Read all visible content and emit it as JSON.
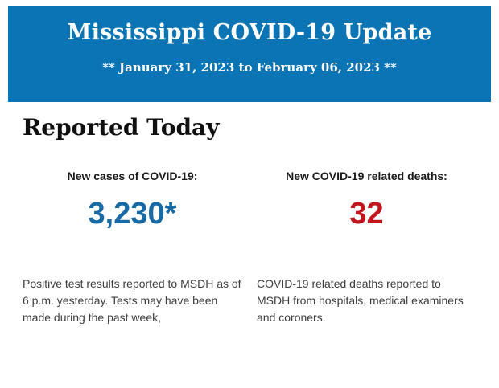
{
  "header": {
    "title": "Mississippi COVID-19 Update",
    "date_range": "** January 31, 2023 to February 06, 2023 **",
    "background_color": "#0b74b4",
    "text_color": "#ffffff"
  },
  "section": {
    "heading": "Reported Today"
  },
  "stats": [
    {
      "label": "New cases of COVID-19:",
      "value": "3,230*",
      "value_color": "#176aa4",
      "description": "Positive test results reported to MSDH as of 6 p.m. yesterday. Tests may have been made during the past week,"
    },
    {
      "label": "New COVID-19 related deaths:",
      "value": "32",
      "value_color": "#c2161e",
      "description": "COVID-19 related deaths reported to MSDH from hospitals, medical examiners and coroners."
    }
  ]
}
